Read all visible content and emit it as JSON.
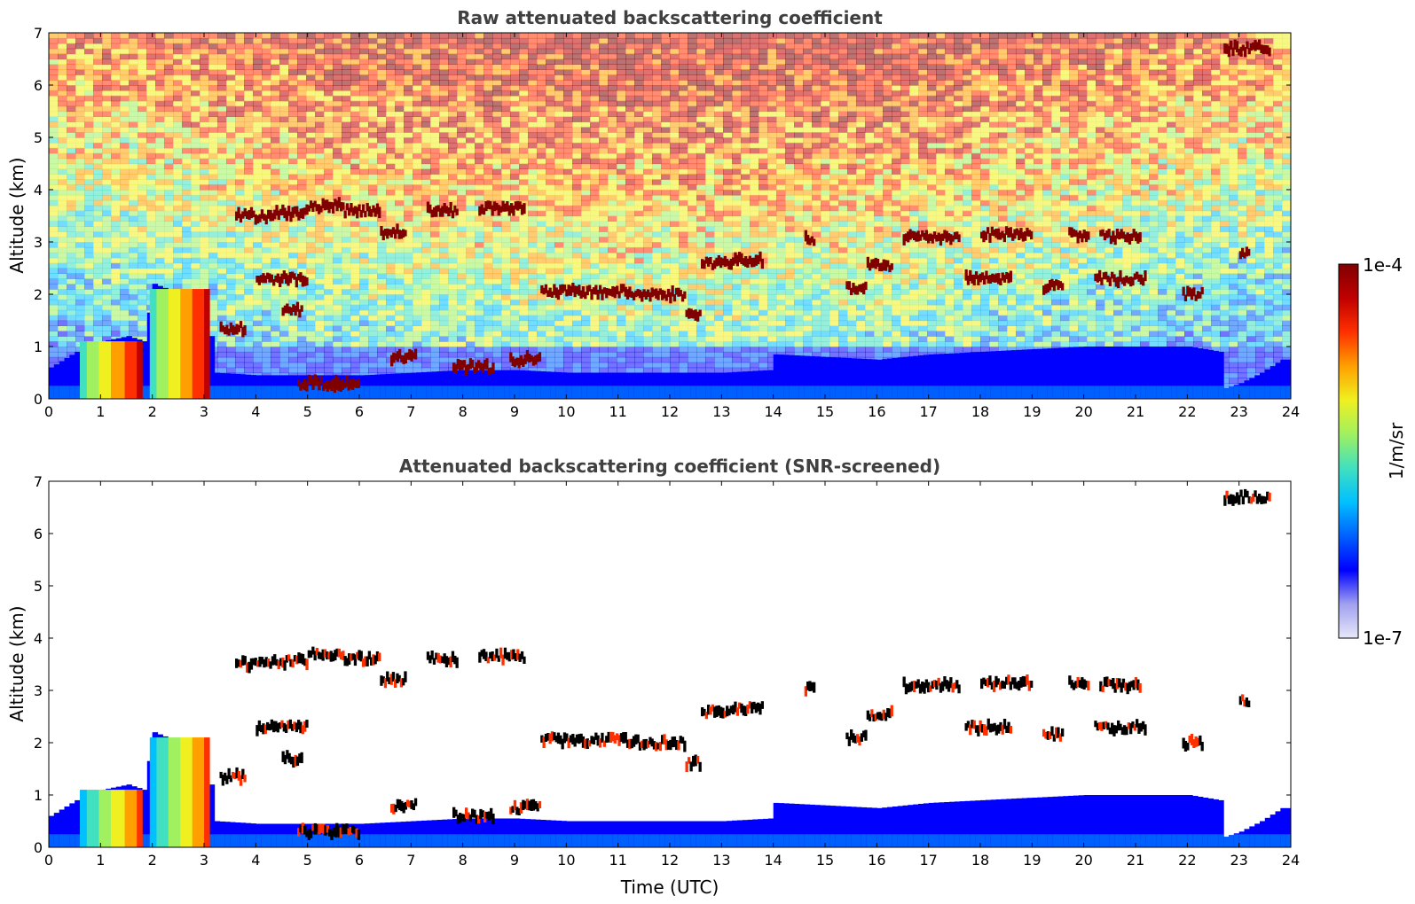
{
  "colors": {
    "title": "#404040",
    "colormap": [
      "#e8e8f8",
      "#a0a0f0",
      "#0000ff",
      "#0060ff",
      "#00c0ff",
      "#40e0c0",
      "#a0f060",
      "#f0f020",
      "#ffa000",
      "#ff3000",
      "#c00000",
      "#800000"
    ],
    "cloud_core": "#000000"
  },
  "chart_data": [
    {
      "type": "heatmap",
      "title": "Raw attenuated backscattering coefficient",
      "xlabel": "",
      "ylabel": "Altitude (km)",
      "xlim": [
        0,
        24
      ],
      "ylim": [
        0,
        7
      ],
      "xticks": [
        "0",
        "1",
        "2",
        "3",
        "4",
        "5",
        "6",
        "7",
        "8",
        "9",
        "10",
        "11",
        "12",
        "13",
        "14",
        "15",
        "16",
        "17",
        "18",
        "19",
        "20",
        "21",
        "22",
        "23",
        "24"
      ],
      "yticks": [
        "0",
        "1",
        "2",
        "3",
        "4",
        "5",
        "6",
        "7"
      ],
      "grid": false,
      "background_noise": true
    },
    {
      "type": "heatmap",
      "title": "Attenuated backscattering coefficient (SNR-screened)",
      "xlabel": "Time (UTC)",
      "ylabel": "Altitude (km)",
      "xlim": [
        0,
        24
      ],
      "ylim": [
        0,
        7
      ],
      "xticks": [
        "0",
        "1",
        "2",
        "3",
        "4",
        "5",
        "6",
        "7",
        "8",
        "9",
        "10",
        "11",
        "12",
        "13",
        "14",
        "15",
        "16",
        "17",
        "18",
        "19",
        "20",
        "21",
        "22",
        "23",
        "24"
      ],
      "yticks": [
        "0",
        "1",
        "2",
        "3",
        "4",
        "5",
        "6",
        "7"
      ],
      "grid": false,
      "background_noise": false
    }
  ],
  "colorbar": {
    "label": "1/m/sr",
    "max_label": "1e-4",
    "min_label": "1e-7",
    "scale": "log",
    "range": [
      1e-07,
      0.0001
    ]
  },
  "layers": {
    "boundary_layer_top_km": [
      [
        0,
        0.6
      ],
      [
        0.5,
        0.9
      ],
      [
        1,
        1.1
      ],
      [
        1.5,
        1.2
      ],
      [
        1.8,
        1.1
      ],
      [
        2,
        2.2
      ],
      [
        2.5,
        2.0
      ],
      [
        3,
        1.9
      ],
      [
        3.2,
        0.5
      ],
      [
        4,
        0.45
      ],
      [
        5,
        0.45
      ],
      [
        6,
        0.45
      ],
      [
        7,
        0.5
      ],
      [
        8,
        0.55
      ],
      [
        9,
        0.55
      ],
      [
        10,
        0.5
      ],
      [
        11,
        0.5
      ],
      [
        12,
        0.5
      ],
      [
        13,
        0.5
      ],
      [
        13.9,
        0.55
      ],
      [
        14,
        0.85
      ],
      [
        15,
        0.8
      ],
      [
        16,
        0.75
      ],
      [
        17,
        0.85
      ],
      [
        18,
        0.9
      ],
      [
        19,
        0.95
      ],
      [
        20,
        1.0
      ],
      [
        21,
        1.0
      ],
      [
        22,
        1.0
      ],
      [
        22.6,
        0.9
      ],
      [
        22.7,
        0.2
      ],
      [
        23,
        0.3
      ],
      [
        23.4,
        0.5
      ],
      [
        23.8,
        0.75
      ]
    ],
    "cloud_segments": [
      [
        3.6,
        4.3,
        3.5
      ],
      [
        4.3,
        5.0,
        3.55
      ],
      [
        5.0,
        5.7,
        3.7
      ],
      [
        5.7,
        6.4,
        3.6
      ],
      [
        6.4,
        6.9,
        3.2
      ],
      [
        7.3,
        7.9,
        3.6
      ],
      [
        8.3,
        9.2,
        3.65
      ],
      [
        4.0,
        5.0,
        2.3
      ],
      [
        4.5,
        4.9,
        1.7
      ],
      [
        3.3,
        3.8,
        1.35
      ],
      [
        6.6,
        7.1,
        0.8
      ],
      [
        9.5,
        10.3,
        2.05
      ],
      [
        10.3,
        11.2,
        2.05
      ],
      [
        11.2,
        12.3,
        2.0
      ],
      [
        12.3,
        12.6,
        1.6
      ],
      [
        12.6,
        13.2,
        2.6
      ],
      [
        13.2,
        13.8,
        2.65
      ],
      [
        14.6,
        14.8,
        3.05
      ],
      [
        15.4,
        15.8,
        2.1
      ],
      [
        15.8,
        16.3,
        2.55
      ],
      [
        16.5,
        17.6,
        3.1
      ],
      [
        18.0,
        19.0,
        3.15
      ],
      [
        19.7,
        20.1,
        3.15
      ],
      [
        20.3,
        21.1,
        3.1
      ],
      [
        17.7,
        18.6,
        2.3
      ],
      [
        19.2,
        19.6,
        2.15
      ],
      [
        20.2,
        21.2,
        2.3
      ],
      [
        21.9,
        22.3,
        2.0
      ],
      [
        23.0,
        23.2,
        2.8
      ],
      [
        22.7,
        23.6,
        6.7
      ],
      [
        5.5,
        6.0,
        0.3
      ],
      [
        7.8,
        8.6,
        0.6
      ],
      [
        8.9,
        9.5,
        0.75
      ],
      [
        4.8,
        5.6,
        0.3
      ]
    ],
    "aerosol_columns": [
      [
        0.6,
        1.8,
        1.1
      ],
      [
        1.95,
        3.1,
        2.1
      ]
    ]
  }
}
